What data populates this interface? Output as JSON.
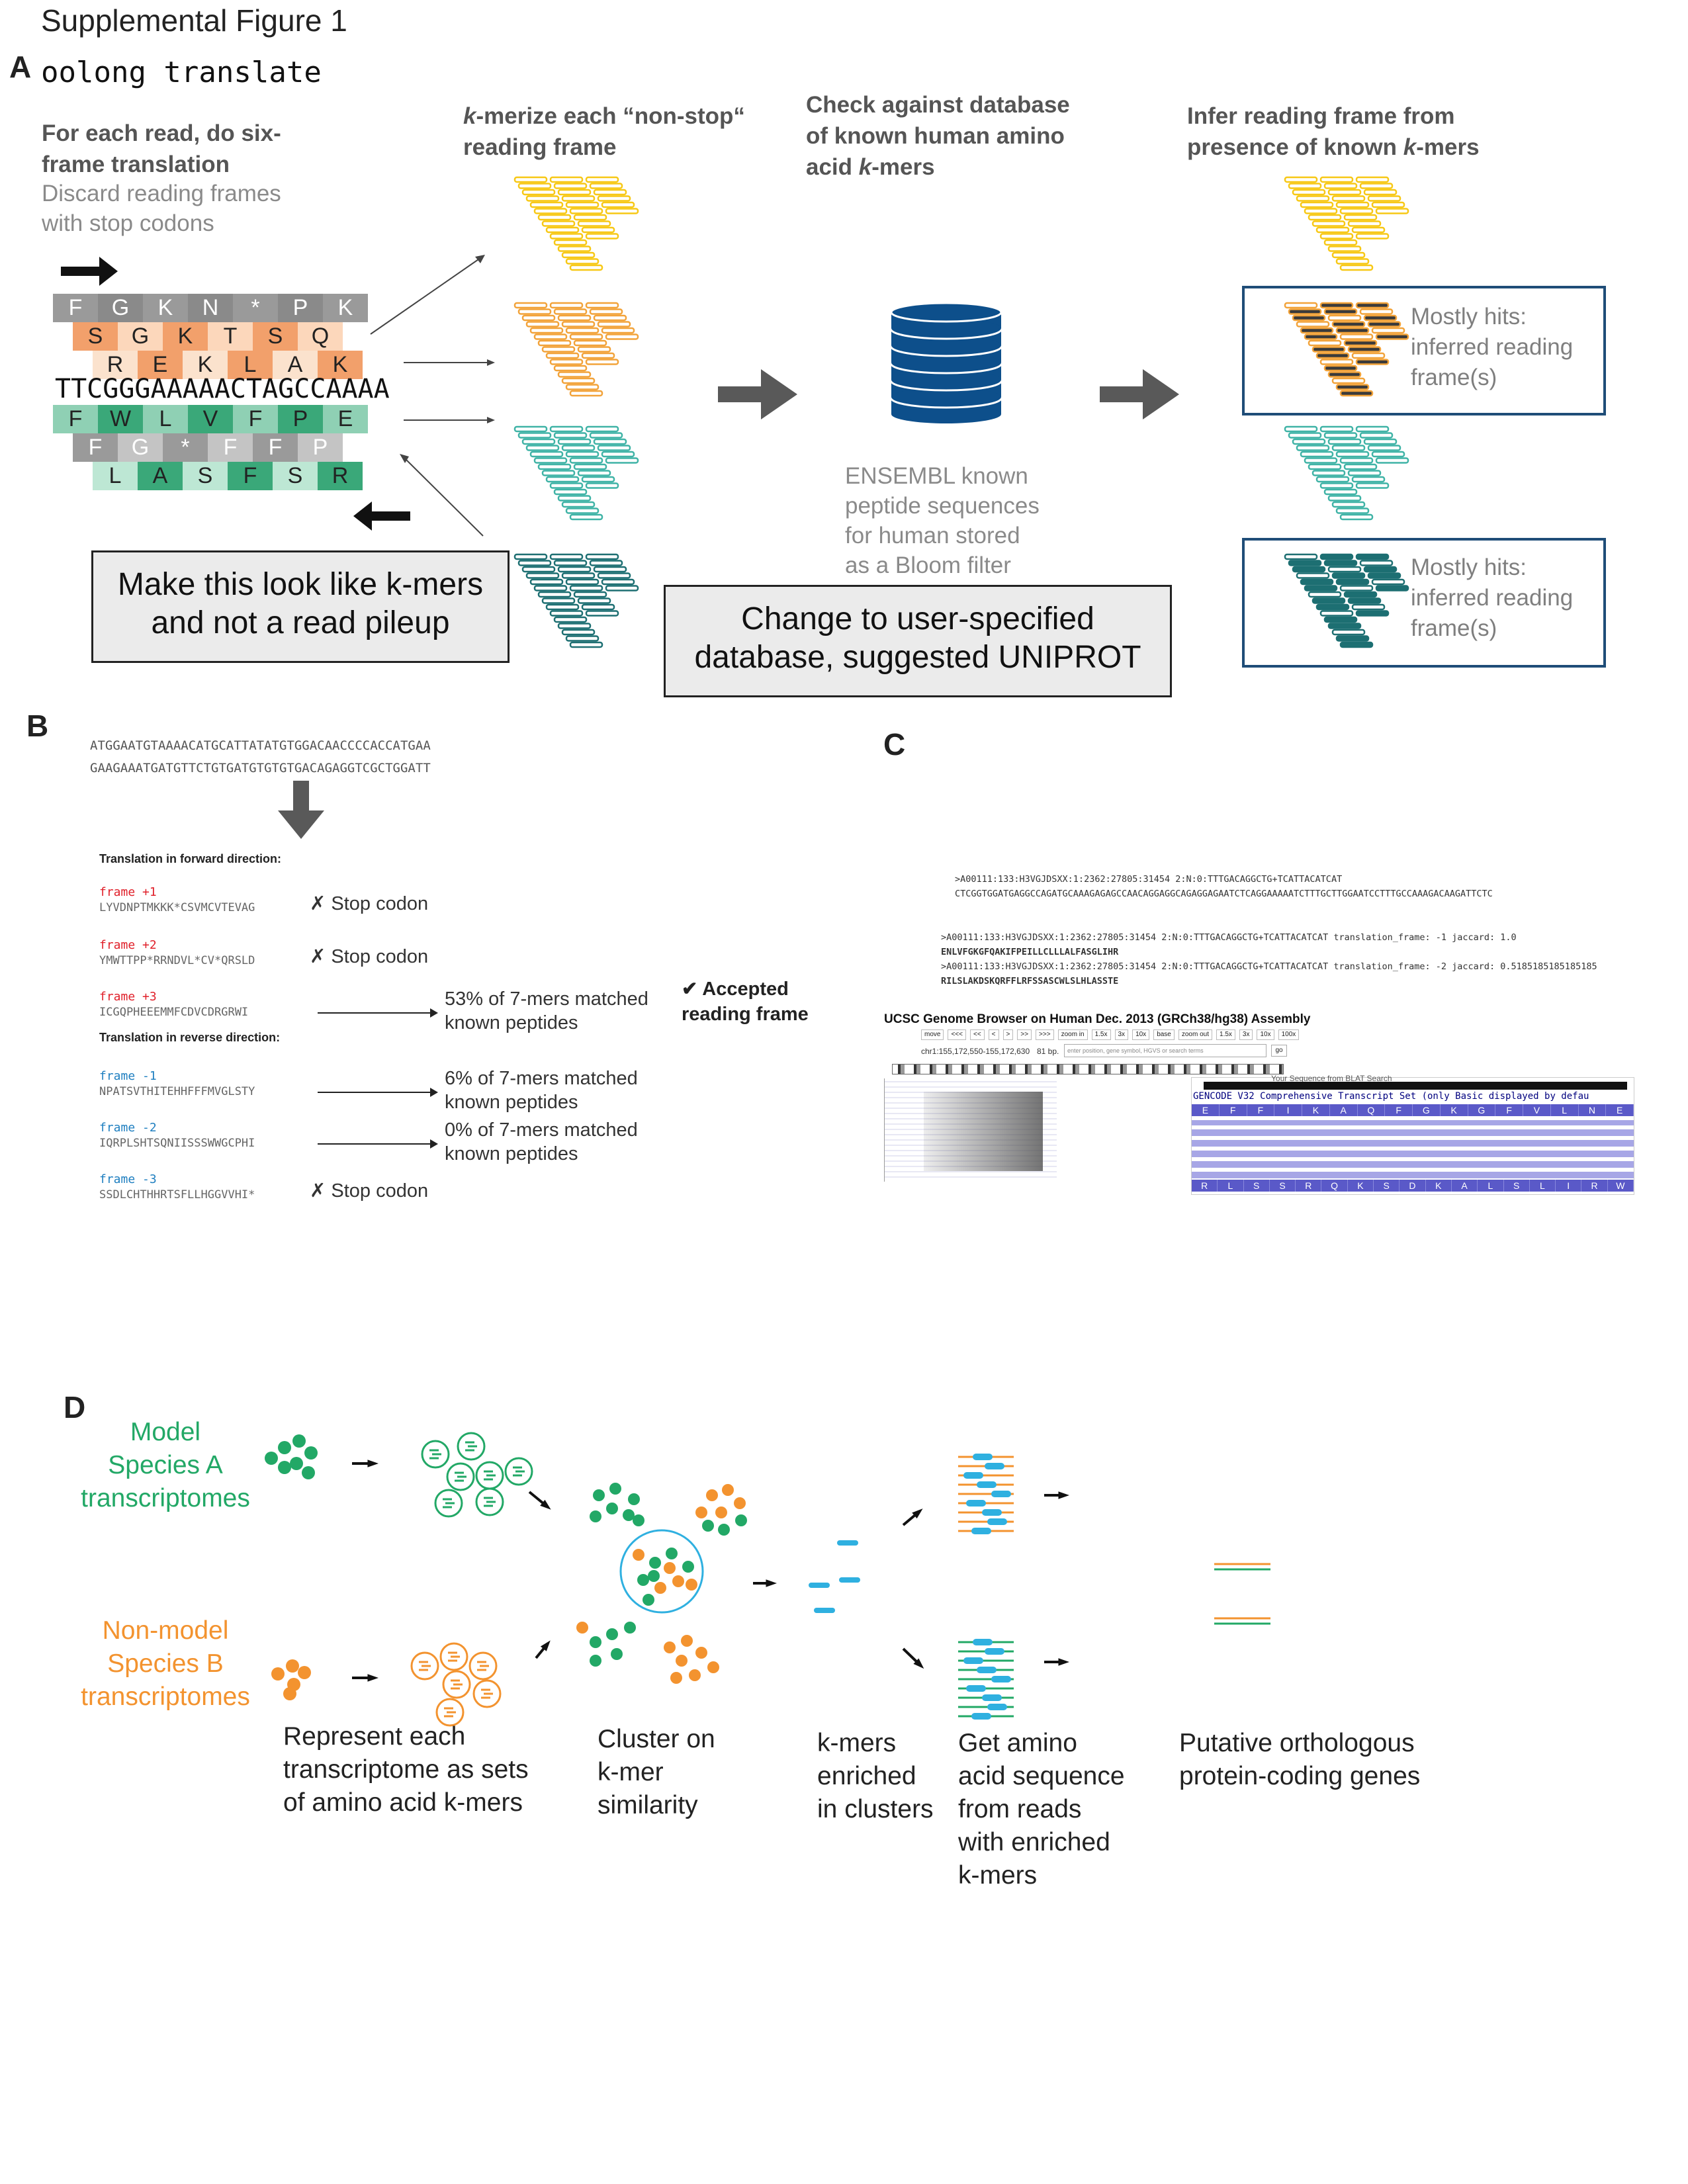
{
  "figure_title": "Supplemental Figure 1",
  "panel_a": {
    "label": "A",
    "command": "oolong translate",
    "step1": {
      "title": [
        "For each read, do six-",
        "frame translation"
      ],
      "sub": [
        "Discard reading frames",
        "with stop codons"
      ]
    },
    "step2": {
      "title_em": "k",
      "title_rest": "-merize each “non-stop“",
      "title2": "reading frame"
    },
    "step3": {
      "title": [
        "Check against database",
        "of known human amino"
      ],
      "title_last_pre": "acid ",
      "title_last_em": "k",
      "title_last_post": "-mers"
    },
    "step4": {
      "title": "Infer reading frame from",
      "title2_pre": "presence of known ",
      "title2_em": "k",
      "title2_post": "-mers"
    },
    "frames": [
      [
        "F",
        "G",
        "K",
        "N",
        "*",
        "P",
        "K"
      ],
      [
        "S",
        "G",
        "K",
        "T",
        "S",
        "Q"
      ],
      [
        "R",
        "E",
        "K",
        "L",
        "A",
        "K"
      ],
      [
        "F",
        "W",
        "L",
        "V",
        "F",
        "P",
        "E"
      ],
      [
        "F",
        "G",
        "*",
        "F",
        "F",
        "P"
      ],
      [
        "L",
        "A",
        "S",
        "F",
        "S",
        "R"
      ]
    ],
    "dna": "TTCGGGAAAAACTAGCCAAAA",
    "note_kmers": [
      "Make this look like k-mers",
      "and not a read pileup"
    ],
    "db_caption": [
      "ENSEMBL known",
      "peptide sequences",
      "for human stored",
      "as a Bloom filter"
    ],
    "note_db": [
      "Change to user-specified",
      "database, suggested UNIPROT"
    ],
    "hits_text": [
      "Mostly hits:",
      "inferred reading",
      "frame(s)"
    ],
    "colors": {
      "yellow": "#f7c815",
      "orange": "#f2a33a",
      "teal_light": "#3fb3a6",
      "teal_dark": "#1d6f72",
      "db_blue": "#0d4f8b",
      "box_blue": "#1f4d78"
    }
  },
  "panel_b": {
    "label": "B",
    "sequence": [
      "ATGGAATGTAAAACATGCATTATATGTGGACAACCCCACCATGAA",
      "GAAGAAATGATGTTCTGTGATGTGTGTGACAGAGGTCGCTGGATT"
    ],
    "forward_title": "Translation in forward direction:",
    "reverse_title": "Translation in reverse direction:",
    "frames": [
      {
        "label": "frame +1",
        "seq": "LYVDNPTMKKK*CSVMCVTEVAG",
        "result": "✗  Stop codon",
        "dir": "fwd"
      },
      {
        "label": "frame +2",
        "seq": "YMWTTPP*RRNDVL*CV*QRSLD",
        "result": "✗  Stop codon",
        "dir": "fwd"
      },
      {
        "label": "frame +3",
        "seq": "ICGQPHEEEMMFCDVCDRGRWI",
        "result": [
          "53% of 7-mers matched",
          "known peptides"
        ],
        "dir": "fwd"
      },
      {
        "label": "frame -1",
        "seq": "NPATSVTHITEHHFFFMVGLSTY",
        "result": [
          "6% of 7-mers matched",
          "known peptides"
        ],
        "dir": "rev"
      },
      {
        "label": "frame -2",
        "seq": "IQRPLSHTSQNIISSSWWGCPHI",
        "result": [
          "0% of 7-mers matched",
          "known peptides"
        ],
        "dir": "rev"
      },
      {
        "label": "frame -3",
        "seq": "SSDLCHTHHRTSFLLHGGVVHI*",
        "result": "✗  Stop codon",
        "dir": "rev"
      }
    ],
    "accepted": [
      "✔  Accepted",
      "reading frame"
    ],
    "colors": {
      "forward": "#e0202a",
      "reverse": "#1f7fc0"
    }
  },
  "panel_c": {
    "label": "C",
    "lines": [
      ">A00111:133:H3VGJDSXX:1:2362:27805:31454 2:N:0:TTTGACAGGCTG+TCATTACATCAT",
      "CTCGGTGGATGAGGCCAGATGCAAAGAGAGCCAACAGGAGGCAGAGGAGAATCTCAGGAAAAATCTTTGCTTGGAATCCTTTGCCAAAGACAAGATTCTC",
      ">A00111:133:H3VGJDSXX:1:2362:27805:31454 2:N:0:TTTGACAGGCTG+TCATTACATCAT translation_frame: -1 jaccard: 1.0",
      "ENLVFGKGFQAKIFPEILLCLLLALFASGLIHR",
      ">A00111:133:H3VGJDSXX:1:2362:27805:31454 2:N:0:TTTGACAGGCTG+TCATTACATCAT translation_frame: -2 jaccard: 0.5185185185185185",
      "RILSLAKDSKQRFFLRFSSASCWLSLHLASSTE"
    ],
    "browser_title": "UCSC Genome Browser on Human Dec. 2013 (GRCh38/hg38) Assembly",
    "browser_nav": [
      "move",
      "<<<",
      "<<",
      "<",
      ">",
      ">>",
      ">>>",
      "zoom in",
      "1.5x",
      "3x",
      "10x",
      "base",
      "zoom out",
      "1.5x",
      "3x",
      "10x",
      "100x"
    ],
    "position": "chr1:155,172,550-155,172,630",
    "bp": "81 bp.",
    "search_placeholder": "enter position, gene symbol, HGVS or search terms",
    "go": "go",
    "gencode_title": "GENCODE V32 Comprehensive Transcript Set (only Basic displayed by defau",
    "seq_top_letters": [
      "E",
      "F",
      "F",
      "I",
      "K",
      "A",
      "Q",
      "F",
      "G",
      "K",
      "G",
      "F",
      "V",
      "L",
      "N",
      "E"
    ],
    "seq_bottom_letters": [
      "R",
      "L",
      "S",
      "S",
      "R",
      "Q",
      "K",
      "S",
      "D",
      "K",
      "A",
      "L",
      "S",
      "L",
      "I",
      "R",
      "W"
    ],
    "your_sequence": "Your Sequence from BLAT Search"
  },
  "panel_d": {
    "label": "D",
    "species_a": [
      "Model",
      "Species A",
      "transcriptomes"
    ],
    "species_b": [
      "Non-model",
      "Species B",
      "transcriptomes"
    ],
    "step_labels": {
      "represent": [
        "Represent each",
        "transcriptome as sets",
        "of amino acid k-mers"
      ],
      "cluster": [
        "Cluster on",
        "k-mer",
        "similarity"
      ],
      "kmers": [
        "k-mers",
        "enriched",
        "in clusters"
      ],
      "get_aa": [
        "Get amino",
        "acid sequence",
        "from reads",
        "with enriched",
        "k-mers"
      ],
      "putative": [
        "Putative orthologous",
        "protein-coding genes"
      ]
    },
    "colors": {
      "green": "#22a866",
      "orange": "#f3932f",
      "blue": "#2fb0e0"
    }
  }
}
